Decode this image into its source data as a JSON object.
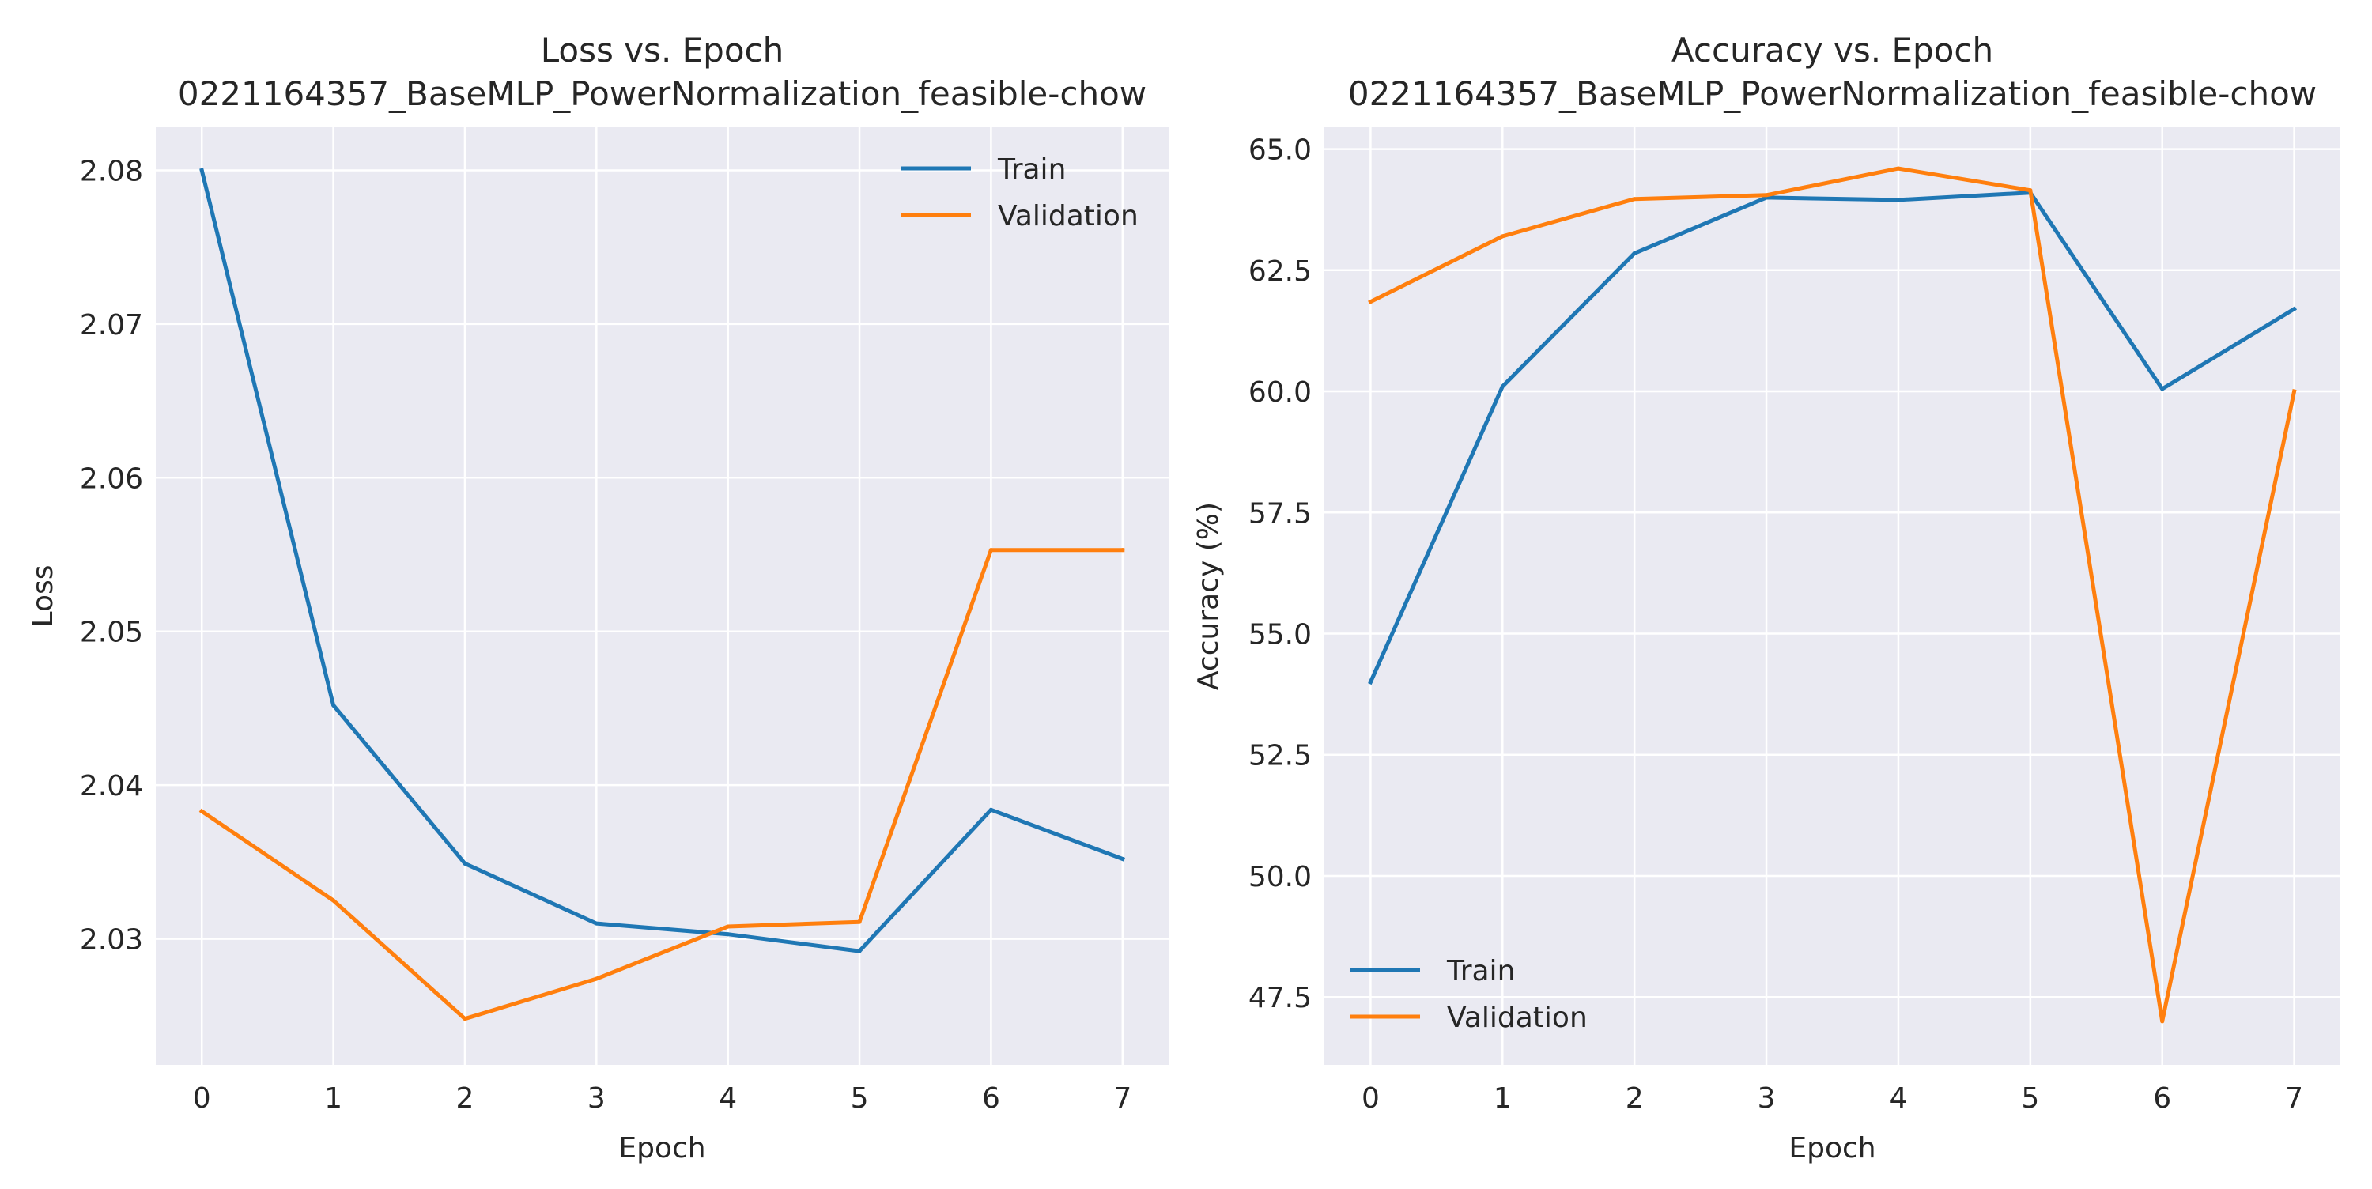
{
  "chart_data": [
    {
      "type": "line",
      "title": "Loss vs. Epoch",
      "subtitle": "0221164357_BaseMLP_PowerNormalization_feasible-chow",
      "xlabel": "Epoch",
      "ylabel": "Loss",
      "x": [
        0,
        1,
        2,
        3,
        4,
        5,
        6,
        7
      ],
      "xlim": [
        -0.35,
        7.35
      ],
      "ylim": [
        2.0218,
        2.0828
      ],
      "yticks": [
        2.03,
        2.04,
        2.05,
        2.06,
        2.07,
        2.08
      ],
      "ytick_labels": [
        "2.03",
        "2.04",
        "2.05",
        "2.06",
        "2.07",
        "2.08"
      ],
      "grid": true,
      "legend_position": "upper right",
      "series": [
        {
          "name": "Train",
          "color": "#1f77b4",
          "values": [
            2.08,
            2.0452,
            2.0349,
            2.031,
            2.0303,
            2.0292,
            2.0384,
            2.0352
          ]
        },
        {
          "name": "Validation",
          "color": "#ff7f0e",
          "values": [
            2.0383,
            2.0325,
            2.0248,
            2.0274,
            2.0308,
            2.0311,
            2.0553,
            2.0553
          ]
        }
      ]
    },
    {
      "type": "line",
      "title": "Accuracy vs. Epoch",
      "subtitle": "0221164357_BaseMLP_PowerNormalization_feasible-chow",
      "xlabel": "Epoch",
      "ylabel": "Accuracy (%)",
      "x": [
        0,
        1,
        2,
        3,
        4,
        5,
        6,
        7
      ],
      "xlim": [
        -0.35,
        7.35
      ],
      "ylim": [
        46.1,
        65.45
      ],
      "yticks": [
        47.5,
        50.0,
        52.5,
        55.0,
        57.5,
        60.0,
        62.5,
        65.0
      ],
      "ytick_labels": [
        "47.5",
        "50.0",
        "52.5",
        "55.0",
        "57.5",
        "60.0",
        "62.5",
        "65.0"
      ],
      "grid": true,
      "legend_position": "lower left",
      "series": [
        {
          "name": "Train",
          "color": "#1f77b4",
          "values": [
            54.0,
            60.1,
            62.85,
            64.0,
            63.95,
            64.1,
            60.05,
            61.7
          ]
        },
        {
          "name": "Validation",
          "color": "#ff7f0e",
          "values": [
            61.85,
            63.2,
            63.97,
            64.05,
            64.6,
            64.15,
            47.0,
            60.0
          ]
        }
      ]
    }
  ]
}
